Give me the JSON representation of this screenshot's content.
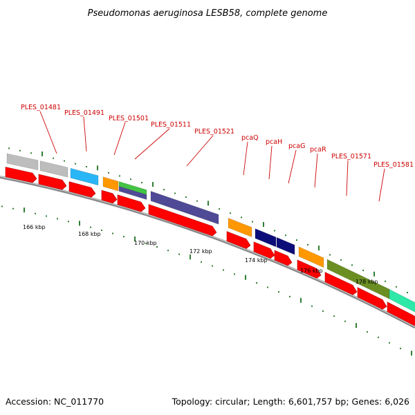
{
  "title": "Pseudomonas aeruginosa LESB58, complete genome",
  "footer": {
    "accession": "Accession: NC_011770",
    "topology": "Topology: circular; Length: 6,601,757 bp; Genes: 6,026"
  },
  "gene_labels": [
    "PLES_01481",
    "PLES_01491",
    "PLES_01501",
    "PLES_01511",
    "PLES_01521",
    "pcaQ",
    "pcaH",
    "pcaG",
    "pcaR",
    "PLES_01571",
    "PLES_01581"
  ],
  "tick_labels": [
    "166 kbp",
    "168 kbp",
    "170 kbp",
    "172 kbp",
    "174 kbp",
    "176 kbp",
    "178 kbp"
  ],
  "colors": {
    "cds_arrow": "#ff0000",
    "label": "#cc0000",
    "backbone": "#8a8a8a",
    "tick_green": "#2e7d32",
    "grey": "#bdbdbd",
    "cyan": "#29b6f6",
    "orange": "#ff9800",
    "green": "#43c443",
    "purple": "#4e4a96",
    "navy": "#0d0d7a",
    "olive": "#6b8e23",
    "teal": "#2ee8a8"
  }
}
